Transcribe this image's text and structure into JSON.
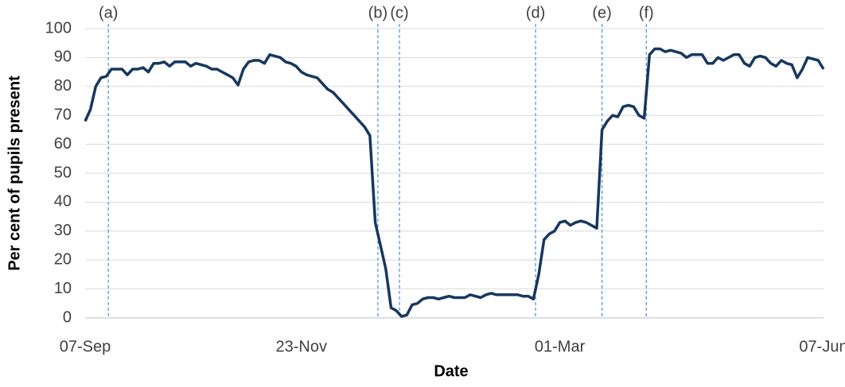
{
  "chart_data": {
    "type": "line",
    "y_label": "Per cent of pupils present",
    "x_label": "Date",
    "categories": [
      "07-Sep",
      null,
      null,
      null,
      null,
      null,
      null,
      null,
      null,
      null,
      null,
      null,
      null,
      null,
      null,
      null,
      null,
      null,
      null,
      null,
      null,
      null,
      null,
      null,
      null,
      null,
      null,
      null,
      null,
      null,
      null,
      null,
      null,
      null,
      null,
      null,
      null,
      null,
      null,
      null,
      null,
      "23-Nov",
      null,
      null,
      null,
      null,
      null,
      null,
      null,
      null,
      null,
      null,
      null,
      null,
      null,
      null,
      null,
      null,
      null,
      null,
      null,
      null,
      null,
      null,
      null,
      null,
      null,
      null,
      null,
      null,
      null,
      null,
      null,
      null,
      null,
      null,
      null,
      null,
      null,
      null,
      null,
      null,
      null,
      null,
      null,
      null,
      null,
      null,
      null,
      null,
      "01-Mar",
      null,
      null,
      null,
      null,
      null,
      null,
      null,
      null,
      null,
      null,
      null,
      null,
      null,
      null,
      null,
      null,
      null,
      null,
      null,
      null,
      null,
      null,
      null,
      null,
      null,
      null,
      null,
      null,
      null,
      null,
      null,
      null,
      null,
      null,
      null,
      null,
      null,
      null,
      null,
      null,
      null,
      null,
      null,
      null,
      null,
      null,
      null,
      null,
      null,
      "07-Jun"
    ],
    "series": [
      {
        "color": "#17375e",
        "values": [
          68,
          72,
          80,
          83,
          83.5,
          86,
          86,
          86,
          84,
          86,
          86,
          86.5,
          85,
          88,
          88,
          88.5,
          87,
          88.5,
          88.5,
          88.5,
          87,
          88,
          87.5,
          87,
          86,
          86,
          85,
          84,
          83,
          80.5,
          86,
          88.5,
          89,
          89,
          88,
          91,
          90.5,
          90,
          88.5,
          88,
          87,
          85,
          84,
          83.5,
          83,
          81,
          79,
          78,
          76,
          74,
          72,
          70,
          68,
          66,
          63,
          33,
          25,
          17,
          3.5,
          2.5,
          0.5,
          1,
          4.5,
          5,
          6.5,
          7,
          7,
          6.5,
          7,
          7.5,
          7,
          7,
          7,
          8,
          7.5,
          7,
          8,
          8.5,
          8,
          8,
          8,
          8,
          8,
          7.5,
          7.5,
          6.5,
          15,
          27,
          29,
          30,
          33,
          33.5,
          32,
          33,
          33.5,
          33,
          32,
          31,
          65,
          68,
          70,
          69.5,
          73,
          73.5,
          73,
          70,
          69,
          91,
          93,
          93,
          92,
          92.5,
          92,
          91.5,
          90,
          91,
          91,
          91,
          88,
          88,
          90,
          89,
          90,
          91,
          91,
          88,
          87,
          90,
          90.5,
          90,
          88,
          87,
          89,
          88,
          87.5,
          83,
          86,
          90,
          89.5,
          89,
          86
        ]
      }
    ],
    "ylim": [
      0,
      100
    ],
    "yticks": [
      0,
      10,
      20,
      30,
      40,
      50,
      60,
      70,
      80,
      90,
      100
    ],
    "grid": true,
    "annotations": [
      {
        "text": "(a)",
        "x": 4.4
      },
      {
        "text": "(b)",
        "x": 55.5
      },
      {
        "text": "(c)",
        "x": 59.6
      },
      {
        "text": "(d)",
        "x": 85.4
      },
      {
        "text": "(e)",
        "x": 98
      },
      {
        "text": "(f)",
        "x": 106.4
      }
    ],
    "annotation_color": "#4a90d9"
  }
}
